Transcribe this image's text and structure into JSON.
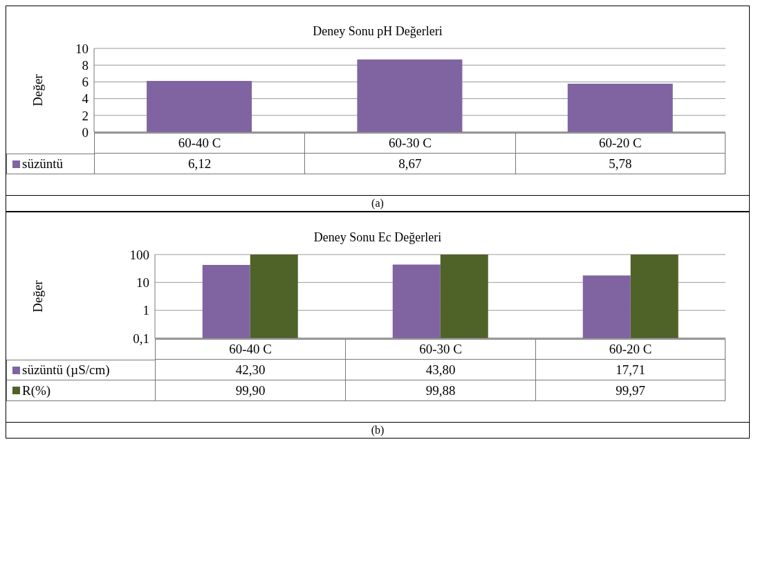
{
  "chart_data": [
    {
      "type": "bar",
      "title": "Deney Sonu pH Değerleri",
      "ylabel": "Değer",
      "categories": [
        "60-40 C",
        "60-30 C",
        "60-20 C"
      ],
      "series": [
        {
          "name": "süzüntü",
          "color": "#8064a2",
          "values": [
            6.12,
            8.67,
            5.78
          ],
          "value_labels": [
            "6,12",
            "8,67",
            "5,78"
          ]
        }
      ],
      "ylim": [
        0,
        10
      ],
      "yticks": [
        0,
        2,
        4,
        6,
        8,
        10
      ],
      "grid": "y",
      "legend": "left",
      "annotations": [
        "(a)"
      ]
    },
    {
      "type": "bar",
      "title": "Deney Sonu Ec Değerleri",
      "ylabel": "Değer",
      "categories": [
        "60-40 C",
        "60-30 C",
        "60-20 C"
      ],
      "series": [
        {
          "name": "süzüntü (µS/cm)",
          "color": "#8064a2",
          "values": [
            42.3,
            43.8,
            17.71
          ],
          "value_labels": [
            "42,30",
            "43,80",
            "17,71"
          ]
        },
        {
          "name": "R(%)",
          "color": "#4f6228",
          "values": [
            99.9,
            99.88,
            99.97
          ],
          "value_labels": [
            "99,90",
            "99,88",
            "99,97"
          ]
        }
      ],
      "log": "y",
      "ylim": [
        0.1,
        100
      ],
      "yticks": [
        {
          "value": 0.1,
          "label": "0,1"
        },
        1,
        10,
        100
      ],
      "grid": "y",
      "legend": "left",
      "annotations": [
        "(b)"
      ]
    }
  ]
}
